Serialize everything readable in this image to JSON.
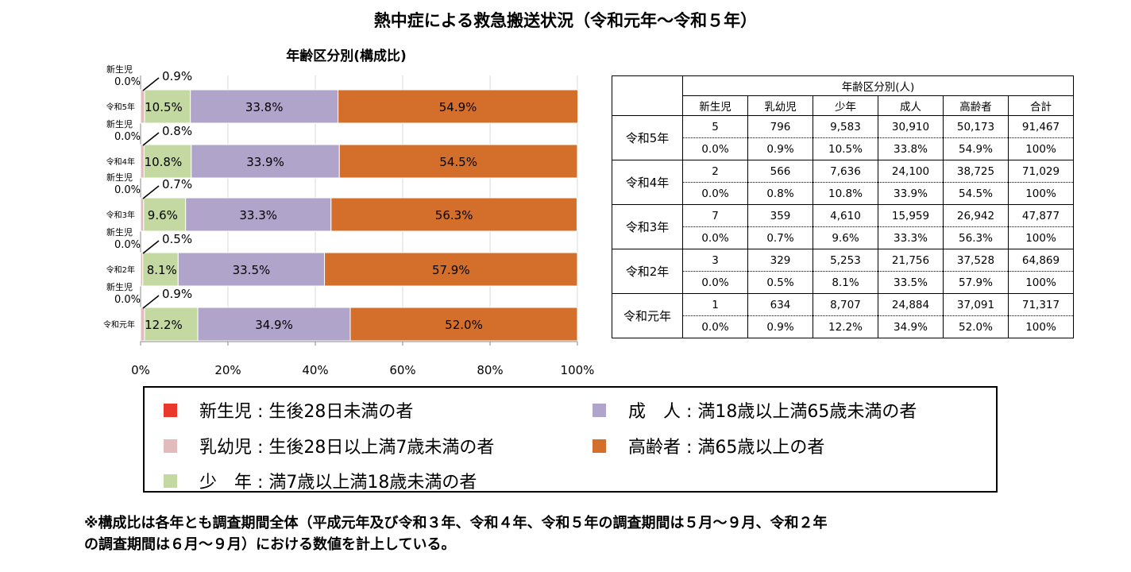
{
  "title": "熱中症による救急搬送状況（令和元年〜令和５年）",
  "chart_data": {
    "type": "bar",
    "orientation": "horizontal",
    "stacked": true,
    "title": "年齢区分別(構成比)",
    "newborn_label": "新生児",
    "categories": [
      "令和5年",
      "令和4年",
      "令和3年",
      "令和2年",
      "令和元年"
    ],
    "series": [
      {
        "name": "新生児",
        "color": "#e8392c",
        "values": [
          0.0,
          0.0,
          0.0,
          0.0,
          0.0
        ],
        "labels": [
          "0.0%",
          "0.0%",
          "0.0%",
          "0.0%",
          "0.0%"
        ]
      },
      {
        "name": "乳幼児",
        "color": "#e2bcbc",
        "values": [
          0.9,
          0.8,
          0.7,
          0.5,
          0.9
        ],
        "labels": [
          "0.9%",
          "0.8%",
          "0.7%",
          "0.5%",
          "0.9%"
        ]
      },
      {
        "name": "少年",
        "color": "#c4d8a2",
        "values": [
          10.5,
          10.8,
          9.6,
          8.1,
          12.2
        ],
        "labels": [
          "10.5%",
          "10.8%",
          "9.6%",
          "8.1%",
          "12.2%"
        ]
      },
      {
        "name": "成人",
        "color": "#b1a4ca",
        "values": [
          33.8,
          33.9,
          33.3,
          33.5,
          34.9
        ],
        "labels": [
          "33.8%",
          "33.9%",
          "33.3%",
          "33.5%",
          "34.9%"
        ]
      },
      {
        "name": "高齢者",
        "color": "#d46f2b",
        "values": [
          54.9,
          54.5,
          56.3,
          57.9,
          52.0
        ],
        "labels": [
          "54.9%",
          "54.5%",
          "56.3%",
          "57.9%",
          "52.0%"
        ]
      }
    ],
    "xlim": [
      0,
      100
    ],
    "x_ticks": [
      "0%",
      "20%",
      "40%",
      "60%",
      "80%",
      "100%"
    ],
    "x_tick_values": [
      0,
      20,
      40,
      60,
      80,
      100
    ],
    "grid": true
  },
  "table": {
    "group_header": "年齢区分別(人)",
    "columns": [
      "新生児",
      "乳幼児",
      "少年",
      "成人",
      "高齢者",
      "合計"
    ],
    "rows": [
      {
        "year": "令和5年",
        "counts": [
          "5",
          "796",
          "9,583",
          "30,910",
          "50,173",
          "91,467"
        ],
        "ratios": [
          "0.0%",
          "0.9%",
          "10.5%",
          "33.8%",
          "54.9%",
          "100%"
        ]
      },
      {
        "year": "令和4年",
        "counts": [
          "2",
          "566",
          "7,636",
          "24,100",
          "38,725",
          "71,029"
        ],
        "ratios": [
          "0.0%",
          "0.8%",
          "10.8%",
          "33.9%",
          "54.5%",
          "100%"
        ]
      },
      {
        "year": "令和3年",
        "counts": [
          "7",
          "359",
          "4,610",
          "15,959",
          "26,942",
          "47,877"
        ],
        "ratios": [
          "0.0%",
          "0.7%",
          "9.6%",
          "33.3%",
          "56.3%",
          "100%"
        ]
      },
      {
        "year": "令和2年",
        "counts": [
          "3",
          "329",
          "5,253",
          "21,756",
          "37,528",
          "64,869"
        ],
        "ratios": [
          "0.0%",
          "0.5%",
          "8.1%",
          "33.5%",
          "57.9%",
          "100%"
        ]
      },
      {
        "year": "令和元年",
        "counts": [
          "1",
          "634",
          "8,707",
          "24,884",
          "37,091",
          "71,317"
        ],
        "ratios": [
          "0.0%",
          "0.9%",
          "12.2%",
          "34.9%",
          "52.0%",
          "100%"
        ]
      }
    ]
  },
  "legend": [
    {
      "text": "新生児 : 生後28日未満の者",
      "color": "#e8392c"
    },
    {
      "text": "成　人 : 満18歳以上満65歳未満の者",
      "color": "#b1a4ca"
    },
    {
      "text": "乳幼児 : 生後28日以上満7歳未満の者",
      "color": "#e2bcbc"
    },
    {
      "text": "高齢者 : 満65歳以上の者",
      "color": "#d46f2b"
    },
    {
      "text": "少　年 : 満7歳以上満18歳未満の者",
      "color": "#c4d8a2"
    }
  ],
  "footnote": {
    "line1": "※構成比は各年とも調査期間全体（平成元年及び令和３年、令和４年、令和５年の調査期間は５月〜９月、令和２年",
    "line2": "の調査期間は６月〜９月）における数値を計上している。"
  }
}
